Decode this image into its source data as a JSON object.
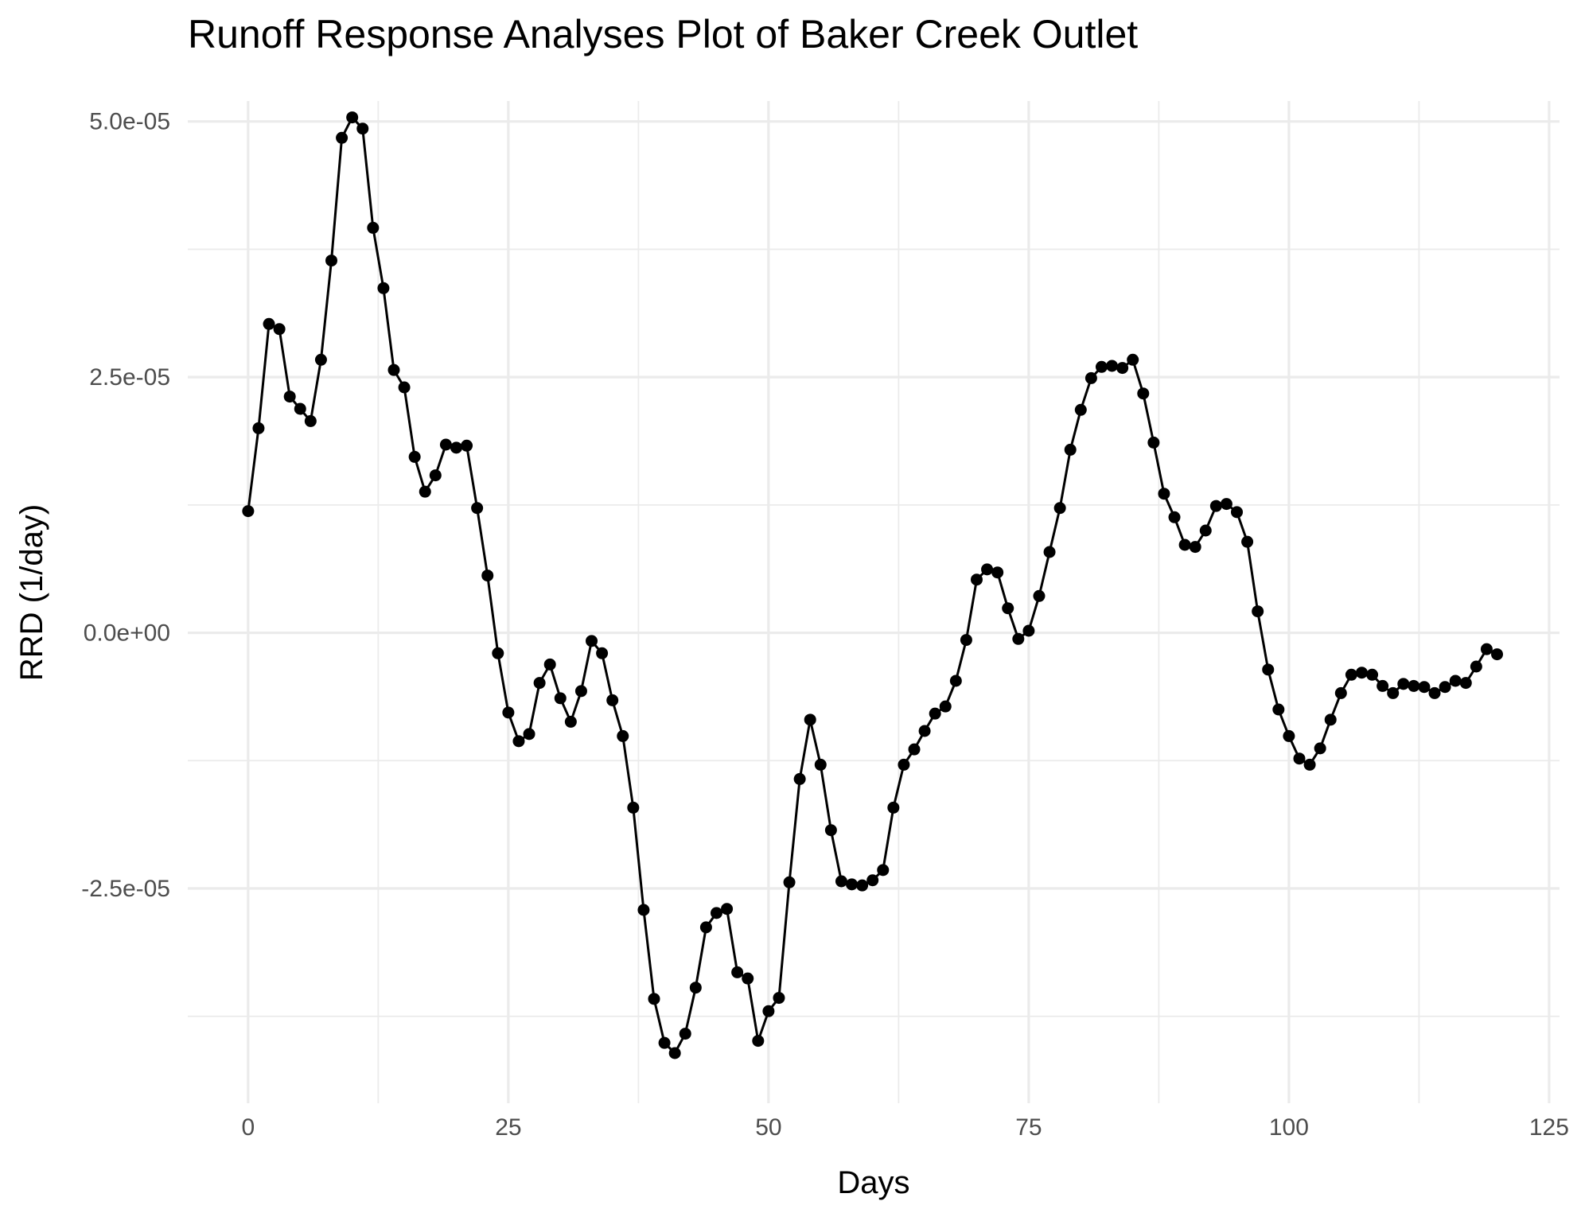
{
  "chart_data": {
    "type": "line",
    "title": "Runoff Response Analyses Plot of Baker Creek Outlet",
    "xlabel": "Days",
    "ylabel": "RRD (1/day)",
    "xlim": [
      -5.8,
      126
    ],
    "ylim": [
      -4.6e-05,
      5.2e-05
    ],
    "x_ticks": [
      {
        "value": 0,
        "label": "0"
      },
      {
        "value": 25,
        "label": "25"
      },
      {
        "value": 50,
        "label": "50"
      },
      {
        "value": 75,
        "label": "75"
      },
      {
        "value": 100,
        "label": "100"
      },
      {
        "value": 125,
        "label": "125"
      }
    ],
    "y_ticks": [
      {
        "value": -2.5e-05,
        "label": "-2.5e-05"
      },
      {
        "value": 0,
        "label": "0.0e+00"
      },
      {
        "value": 2.5e-05,
        "label": "2.5e-05"
      },
      {
        "value": 5e-05,
        "label": "5.0e-05"
      }
    ],
    "grid": true,
    "legend": "none",
    "colors": {
      "series": "#000000",
      "grid": "#ebebeb",
      "tick_text": "#4d4d4d"
    },
    "series": [
      {
        "x": [
          0,
          1,
          2,
          3,
          4,
          5,
          6,
          7,
          8,
          9,
          10,
          11,
          12,
          13,
          14,
          15,
          16,
          17,
          18,
          19,
          20,
          21,
          22,
          23,
          24,
          25,
          26,
          27,
          28,
          29,
          30,
          31,
          32,
          33,
          34,
          35,
          36,
          37,
          38,
          39,
          40,
          41,
          42,
          43,
          44,
          45,
          46,
          47,
          48,
          49,
          50,
          51,
          52,
          53,
          54,
          55,
          56,
          57,
          58,
          59,
          60,
          61,
          62,
          63,
          64,
          65,
          66,
          67,
          68,
          69,
          70,
          71,
          72,
          73,
          74,
          75,
          76,
          77,
          78,
          79,
          80,
          81,
          82,
          83,
          84,
          85,
          86,
          87,
          88,
          89,
          90,
          91,
          92,
          93,
          94,
          95,
          96,
          97,
          98,
          99,
          100,
          101,
          102,
          103,
          104,
          105,
          106,
          107,
          108,
          109,
          110,
          111,
          112,
          113,
          114,
          115,
          116,
          117,
          118,
          119,
          120
        ],
        "values": [
          1.19e-05,
          2e-05,
          3.02e-05,
          2.97e-05,
          2.31e-05,
          2.19e-05,
          2.07e-05,
          2.67e-05,
          3.64e-05,
          4.84e-05,
          5.04e-05,
          4.93e-05,
          3.96e-05,
          3.37e-05,
          2.57e-05,
          2.4e-05,
          1.72e-05,
          1.38e-05,
          1.54e-05,
          1.84e-05,
          1.81e-05,
          1.83e-05,
          1.22e-05,
          5.6e-06,
          -2e-06,
          -7.8e-06,
          -1.06e-05,
          -9.9e-06,
          -4.9e-06,
          -3.1e-06,
          -6.4e-06,
          -8.7e-06,
          -5.7e-06,
          -8e-07,
          -2e-06,
          -6.6e-06,
          -1.01e-05,
          -1.71e-05,
          -2.71e-05,
          -3.58e-05,
          -4.01e-05,
          -4.11e-05,
          -3.92e-05,
          -3.47e-05,
          -2.88e-05,
          -2.74e-05,
          -2.7e-05,
          -3.32e-05,
          -3.38e-05,
          -3.99e-05,
          -3.7e-05,
          -3.57e-05,
          -2.44e-05,
          -1.43e-05,
          -8.5e-06,
          -1.29e-05,
          -1.93e-05,
          -2.43e-05,
          -2.46e-05,
          -2.47e-05,
          -2.42e-05,
          -2.32e-05,
          -1.71e-05,
          -1.29e-05,
          -1.14e-05,
          -9.6e-06,
          -7.9e-06,
          -7.2e-06,
          -4.7e-06,
          -7e-07,
          5.2e-06,
          6.2e-06,
          5.9e-06,
          2.4e-06,
          -6e-07,
          2e-07,
          3.6e-06,
          7.9e-06,
          1.22e-05,
          1.79e-05,
          2.18e-05,
          2.49e-05,
          2.6e-05,
          2.61e-05,
          2.59e-05,
          2.67e-05,
          2.34e-05,
          1.86e-05,
          1.36e-05,
          1.13e-05,
          8.6e-06,
          8.4e-06,
          1e-05,
          1.24e-05,
          1.26e-05,
          1.18e-05,
          8.9e-06,
          2.1e-06,
          -3.6e-06,
          -7.5e-06,
          -1.01e-05,
          -1.23e-05,
          -1.29e-05,
          -1.13e-05,
          -8.5e-06,
          -5.9e-06,
          -4.1e-06,
          -3.9e-06,
          -4.1e-06,
          -5.2e-06,
          -5.9e-06,
          -5e-06,
          -5.2e-06,
          -5.3e-06,
          -5.9e-06,
          -5.3e-06,
          -4.7e-06,
          -4.9e-06,
          -3.3e-06,
          -1.6e-06,
          -2.1e-06
        ]
      }
    ]
  }
}
